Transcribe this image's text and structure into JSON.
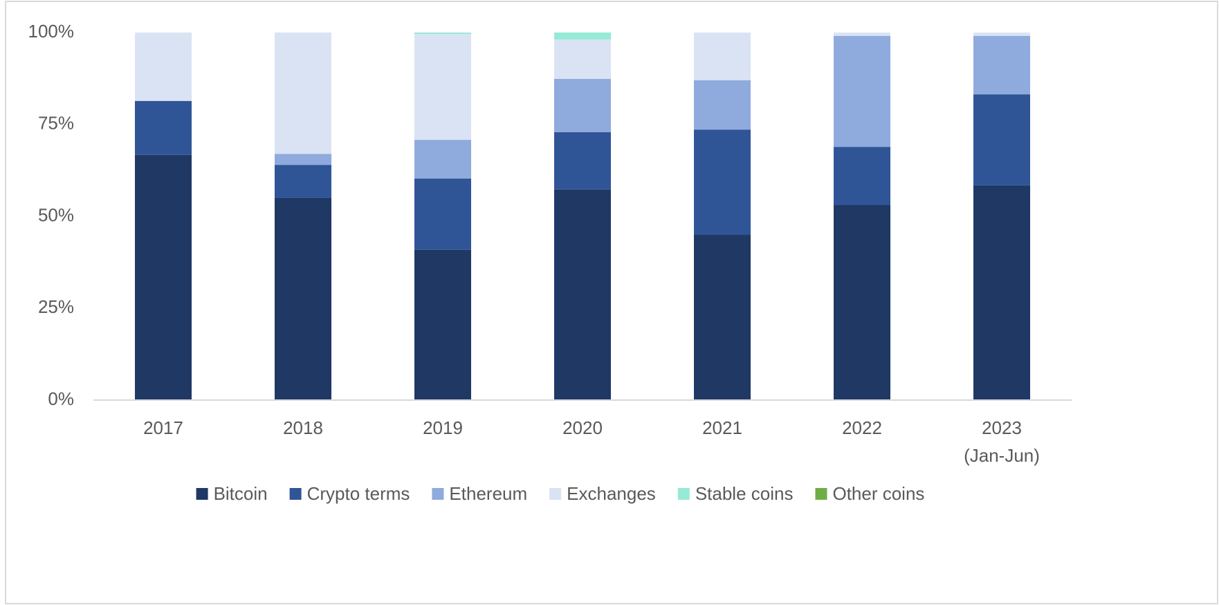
{
  "chart_data": {
    "type": "stacked_bar",
    "categories": [
      "2017",
      "2018",
      "2019",
      "2020",
      "2021",
      "2022",
      "2023\n(Jan-Jun)"
    ],
    "series": [
      {
        "name": "Bitcoin",
        "color": "#1f3864",
        "values": [
          66.7,
          55.0,
          40.9,
          57.3,
          45.0,
          53.1,
          58.4
        ]
      },
      {
        "name": "Crypto terms",
        "color": "#2f5597",
        "values": [
          14.7,
          9.0,
          19.4,
          15.6,
          28.6,
          15.8,
          24.8
        ]
      },
      {
        "name": "Ethereum",
        "color": "#8faadc",
        "values": [
          0,
          3.0,
          10.5,
          14.5,
          13.4,
          30.2,
          15.9
        ]
      },
      {
        "name": "Exchanges",
        "color": "#dae3f3",
        "values": [
          18.6,
          33.0,
          28.8,
          10.7,
          13.0,
          0.9,
          0.9
        ]
      },
      {
        "name": "Stable coins",
        "color": "#96ead6",
        "values": [
          0,
          0,
          0.4,
          1.9,
          0,
          0,
          0
        ]
      },
      {
        "name": "Other coins",
        "color": "#70ad47",
        "values": [
          0,
          0,
          0,
          0,
          0,
          0,
          0
        ]
      }
    ],
    "ylim": [
      0,
      100
    ],
    "yticks": [
      {
        "value": 0,
        "label": "0%"
      },
      {
        "value": 25,
        "label": "25%"
      },
      {
        "value": 50,
        "label": "50%"
      },
      {
        "value": 75,
        "label": "75%"
      },
      {
        "value": 100,
        "label": "100%"
      }
    ],
    "grid": false,
    "legend": "bottom"
  }
}
